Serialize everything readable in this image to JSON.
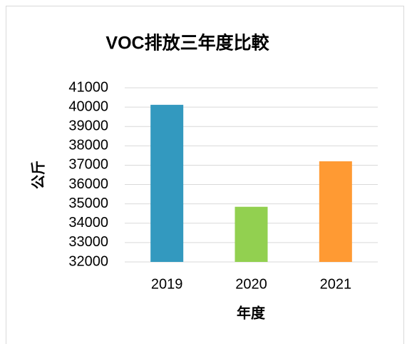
{
  "chart_data": {
    "type": "bar",
    "title": "VOC排放三年度比較",
    "x_label": "年度",
    "y_label": "公斤",
    "categories": [
      "2019",
      "2020",
      "2021"
    ],
    "values": [
      40120,
      34850,
      37200
    ],
    "colors": [
      "#3399bf",
      "#92d050",
      "#ff9a33"
    ],
    "ylim": [
      32000,
      41000
    ],
    "yticks": [
      32000,
      33000,
      34000,
      35000,
      36000,
      37000,
      38000,
      39000,
      40000,
      41000
    ],
    "grid": true
  }
}
